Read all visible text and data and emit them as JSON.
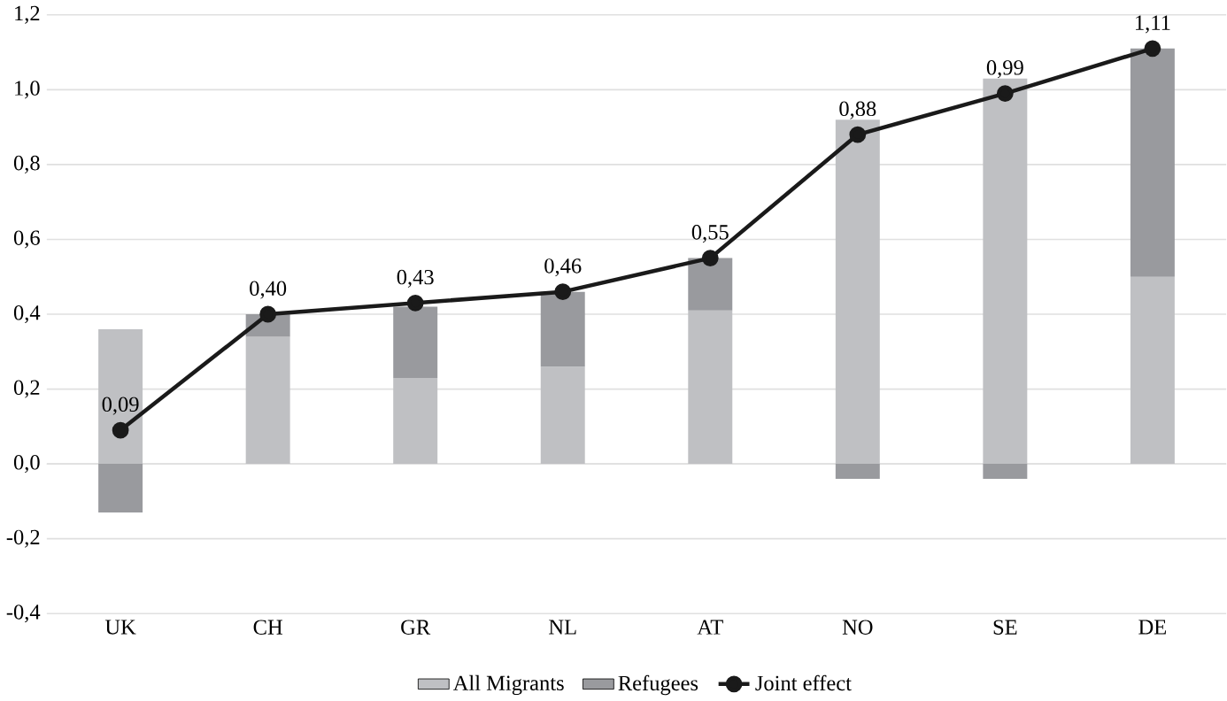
{
  "chart_data": {
    "type": "bar",
    "stacked": true,
    "categories": [
      "UK",
      "CH",
      "GR",
      "NL",
      "AT",
      "NO",
      "SE",
      "DE"
    ],
    "series": [
      {
        "name": "All Migrants",
        "color": "#bfc0c3",
        "values": [
          0.36,
          0.34,
          0.23,
          0.26,
          0.41,
          0.92,
          1.03,
          0.5
        ]
      },
      {
        "name": "Refugees",
        "color": "#999a9e",
        "values": [
          -0.13,
          0.06,
          0.19,
          0.2,
          0.14,
          -0.04,
          -0.04,
          0.61
        ]
      },
      {
        "name": "Joint effect",
        "type": "line",
        "color": "#1a1a1a",
        "marker": "circle",
        "values": [
          0.09,
          0.4,
          0.43,
          0.46,
          0.55,
          0.88,
          0.99,
          1.11
        ],
        "value_labels": [
          "0,09",
          "0,40",
          "0,43",
          "0,46",
          "0,55",
          "0,88",
          "0,99",
          "1,11"
        ]
      }
    ],
    "ylim": [
      -0.4,
      1.2
    ],
    "yticks": [
      {
        "value": -0.4,
        "label": "-0,4"
      },
      {
        "value": -0.2,
        "label": "-0,2"
      },
      {
        "value": 0,
        "label": "0,0"
      },
      {
        "value": 0.2,
        "label": "0,2"
      },
      {
        "value": 0.4,
        "label": "0,4"
      },
      {
        "value": 0.6,
        "label": "0,6"
      },
      {
        "value": 0.8,
        "label": "0,8"
      },
      {
        "value": 1.0,
        "label": "1,0"
      },
      {
        "value": 1.2,
        "label": "1,2"
      }
    ],
    "grid": "y",
    "legend": "bottom"
  }
}
